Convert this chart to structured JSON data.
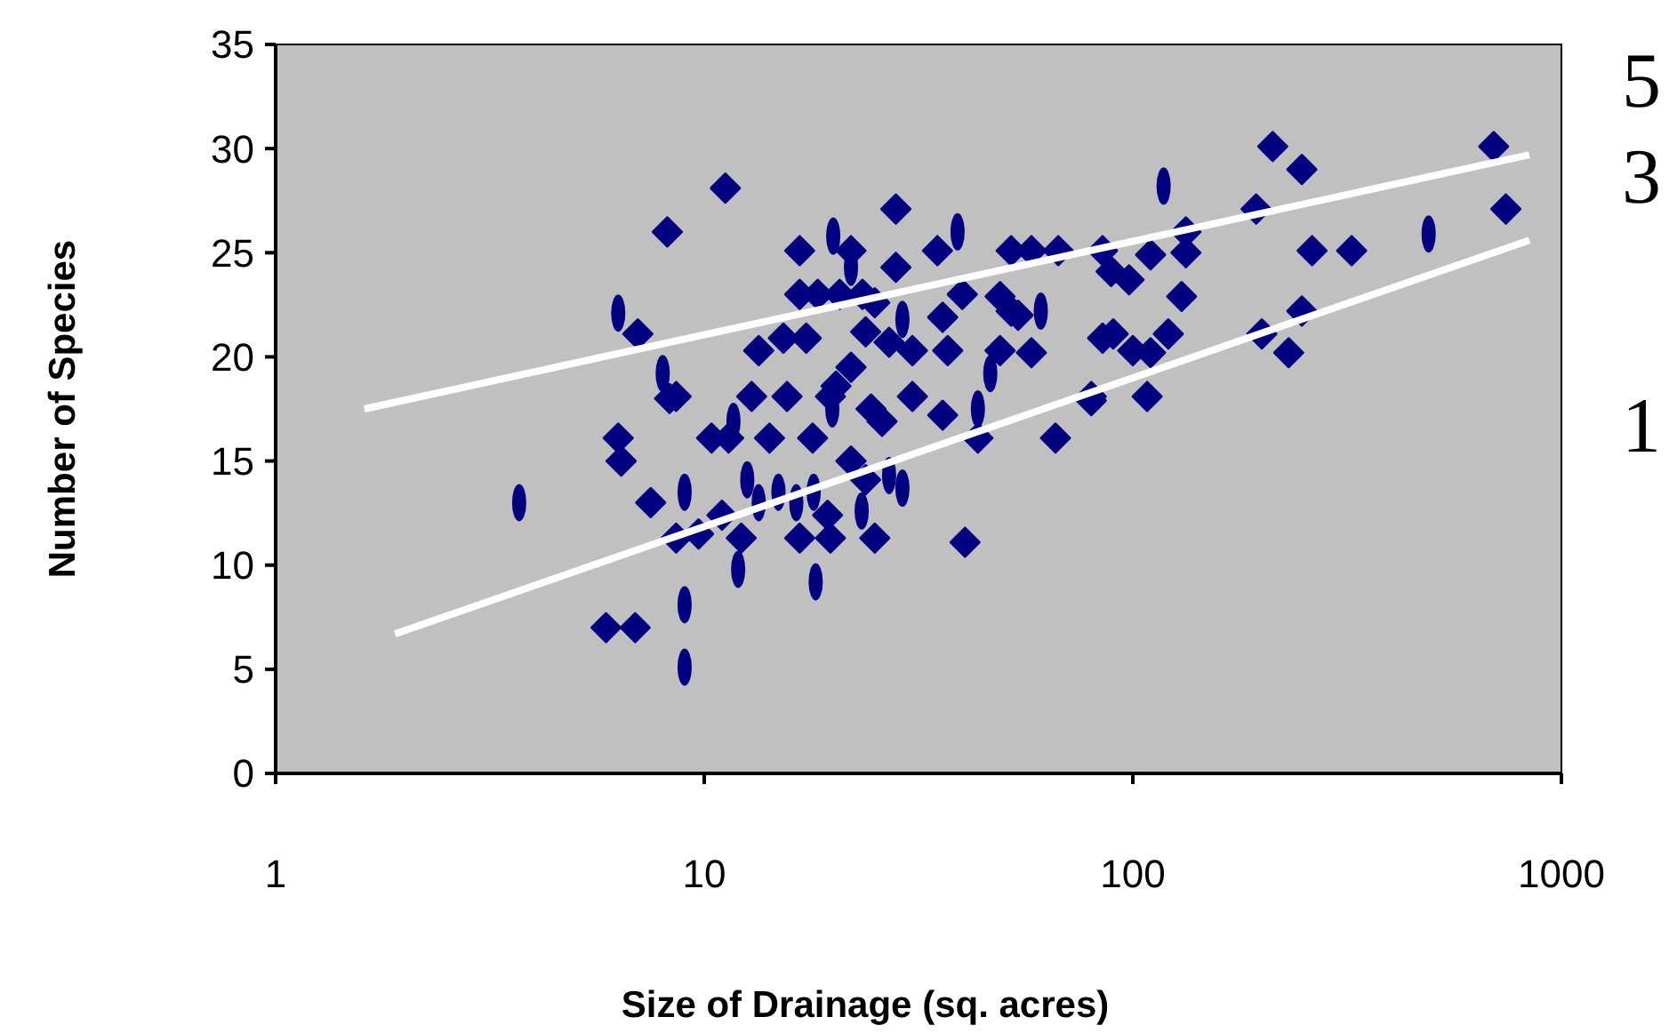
{
  "chart_data": {
    "type": "scatter",
    "xlabel": "Size of Drainage (sq. acres)",
    "ylabel": "Number of Species",
    "log": "x",
    "xlim": [
      1,
      1000
    ],
    "xticks": [
      1,
      10,
      100,
      1000
    ],
    "ylim": [
      0,
      35
    ],
    "yticks": [
      0,
      5,
      10,
      15,
      20,
      25,
      30,
      35
    ],
    "grid": false,
    "annotations": [
      "5",
      "3",
      "1"
    ],
    "series": [
      {
        "color": "#000080",
        "marker": "diamond",
        "x": [
          5.9,
          6.9,
          6.3,
          6.4,
          7.5,
          8.2,
          8.3,
          7.0,
          11.2,
          28,
          16.7,
          22,
          35,
          52,
          58,
          67,
          85,
          28,
          16.7,
          18.4,
          20.7,
          23.4,
          25,
          40,
          49,
          52,
          54,
          36,
          15.3,
          17.3,
          23.8,
          27,
          30.6,
          37,
          13.4,
          49,
          58,
          85,
          22,
          20.3,
          19.7,
          12.9,
          15.6,
          24.5,
          26,
          30.6,
          36,
          8.6,
          10.4,
          11.4,
          14.2,
          17.9,
          22,
          23.8,
          43.5,
          66,
          80,
          11,
          12.2,
          8.6,
          16.7,
          19.7,
          25,
          40.6,
          19.4,
          9.7,
          212,
          248,
          695,
          742,
          194,
          262,
          324,
          133,
          133,
          89,
          98,
          110,
          130,
          90,
          100,
          121,
          110,
          200,
          248,
          231,
          108,
          80
        ],
        "values": [
          7,
          7,
          16.1,
          15,
          13,
          26,
          18,
          21.1,
          28.1,
          27.1,
          25.1,
          25.1,
          25.1,
          25.1,
          25.1,
          25.1,
          25.1,
          24.3,
          23,
          23,
          23,
          23,
          22.6,
          23,
          22.9,
          22.2,
          22,
          21.9,
          20.9,
          20.9,
          21.2,
          20.7,
          20.3,
          20.3,
          20.3,
          20.3,
          20.2,
          20.9,
          19.5,
          18.6,
          18.1,
          18.1,
          18.1,
          17.5,
          16.9,
          18.1,
          17.2,
          18.1,
          16.1,
          16.1,
          16.1,
          16.1,
          15,
          14.1,
          16.1,
          16.1,
          18.1,
          12.4,
          11.3,
          11.3,
          11.3,
          11.3,
          11.3,
          11.1,
          12.4,
          11.5,
          30.1,
          29,
          30.1,
          27.1,
          27.1,
          25.1,
          25.1,
          26,
          25,
          24.1,
          23.7,
          24.9,
          22.9,
          21.1,
          20.3,
          21.1,
          20.2,
          21.1,
          22.2,
          20.2,
          18.1,
          17.9
        ]
      },
      {
        "color": "#000080",
        "x": [
          3.7,
          6.3,
          8.0,
          9,
          9,
          9,
          118,
          490,
          20,
          39,
          61,
          11.7,
          12.6,
          13.4,
          14.9,
          16.4,
          18,
          12,
          18.2,
          19.9,
          23.3,
          27,
          29,
          43.5,
          46.5,
          29,
          22
        ],
        "values": [
          13,
          22.1,
          19.2,
          13.5,
          8.1,
          5.1,
          28.2,
          25.9,
          25.8,
          26,
          22.2,
          16.9,
          14.1,
          13,
          13.5,
          13,
          13.5,
          9.8,
          9.2,
          17.5,
          12.6,
          14.3,
          13.7,
          17.5,
          19.2,
          21.8,
          24.3
        ]
      },
      {
        "type": "line",
        "color": "#ffffff",
        "marker": "none",
        "line_style": "solid",
        "x": [
          1.61,
          842
        ],
        "values": [
          17.5,
          29.7
        ]
      },
      {
        "type": "line",
        "color": "#ffffff",
        "marker": "none",
        "line_style": "solid",
        "x": [
          1.9,
          842
        ],
        "values": [
          6.7,
          25.6
        ]
      }
    ]
  }
}
